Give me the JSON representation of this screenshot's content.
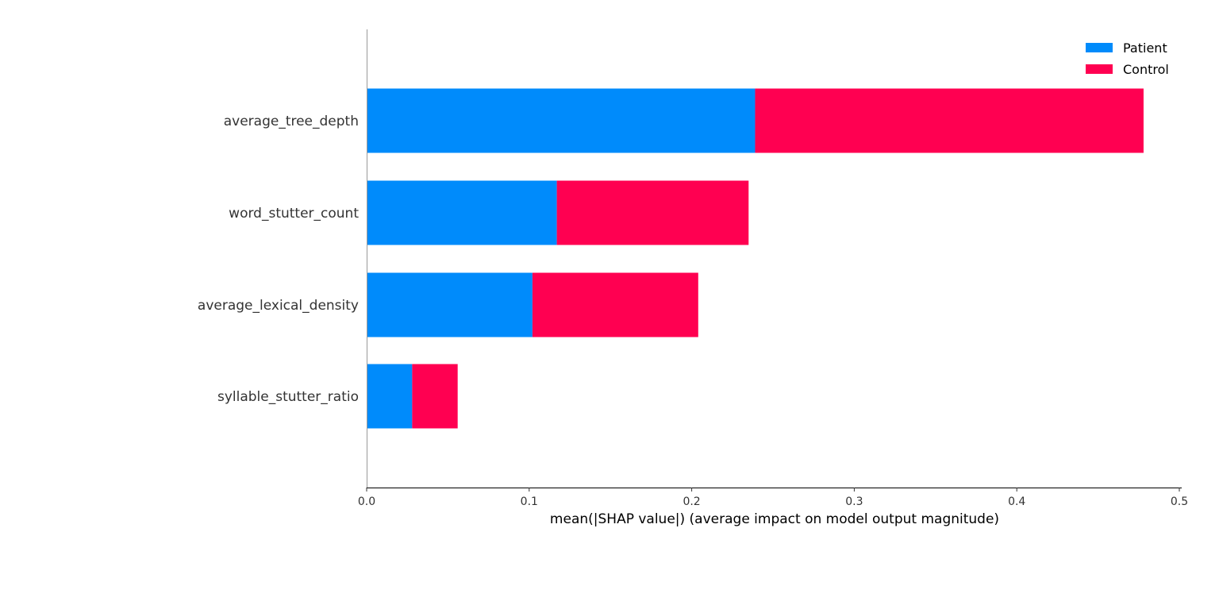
{
  "chart_data": {
    "type": "bar",
    "orientation": "horizontal",
    "stacked": true,
    "categories": [
      "average_tree_depth",
      "word_stutter_count",
      "average_lexical_density",
      "syllable_stutter_ratio"
    ],
    "series": [
      {
        "name": "Patient",
        "color": "#008bfb",
        "values": [
          0.239,
          0.117,
          0.102,
          0.028
        ]
      },
      {
        "name": "Control",
        "color": "#ff0051",
        "values": [
          0.239,
          0.118,
          0.102,
          0.028
        ]
      }
    ],
    "xlabel": "mean(|SHAP value|) (average impact on model output magnitude)",
    "ylabel": "",
    "title": "",
    "xlim": [
      0,
      0.5
    ],
    "xticks": [
      0.0,
      0.1,
      0.2,
      0.3,
      0.4,
      0.5
    ],
    "xtick_labels": [
      "0.0",
      "0.1",
      "0.2",
      "0.3",
      "0.4",
      "0.5"
    ],
    "grid": false,
    "legend": "top-right"
  }
}
